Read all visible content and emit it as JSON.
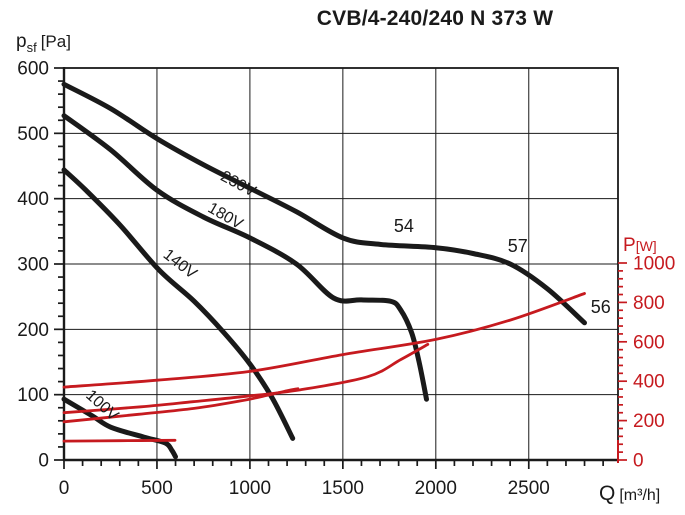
{
  "title": "CVB/4-240/240 N 373 W",
  "chart_data": {
    "type": "line",
    "title": "CVB/4-240/240 N 373 W",
    "grid": true,
    "legend": "none (curves labeled inline)",
    "x_axis": {
      "label_main": "Q",
      "label_unit": "[m³/h]",
      "min": 0,
      "max": 2980,
      "tick_labels": [
        0,
        500,
        1000,
        1500,
        2000,
        2500
      ],
      "major_step": 500,
      "minor_step": 100,
      "color": "#1a1a1a"
    },
    "y_left": {
      "label_main": "p",
      "label_sub": "sf",
      "label_unit": "[Pa]",
      "min": 0,
      "max": 600,
      "tick_labels": [
        600,
        500,
        400,
        300,
        200,
        100,
        0
      ],
      "major_step": 100,
      "minor_step": 20,
      "color": "#1a1a1a"
    },
    "y_right": {
      "label_main": "P",
      "label_unit": "[W]",
      "min": 0,
      "max": 1000,
      "tick_labels": [
        1000,
        800,
        600,
        400,
        200,
        0
      ],
      "major_step": 200,
      "minor_step": 40,
      "color": "#c61a1f"
    },
    "series": [
      {
        "name": "pressure-230V",
        "axis": "left",
        "color": "#1a1a1a",
        "width": 5,
        "points": [
          [
            0,
            575
          ],
          [
            250,
            538
          ],
          [
            500,
            492
          ],
          [
            750,
            452
          ],
          [
            1000,
            416
          ],
          [
            1250,
            380
          ],
          [
            1500,
            340
          ],
          [
            1700,
            330
          ],
          [
            2000,
            325
          ],
          [
            2200,
            316
          ],
          [
            2400,
            300
          ],
          [
            2600,
            262
          ],
          [
            2800,
            210
          ]
        ]
      },
      {
        "name": "pressure-180V",
        "axis": "left",
        "color": "#1a1a1a",
        "width": 5,
        "points": [
          [
            0,
            527
          ],
          [
            250,
            475
          ],
          [
            500,
            413
          ],
          [
            750,
            372
          ],
          [
            1000,
            340
          ],
          [
            1250,
            300
          ],
          [
            1450,
            248
          ],
          [
            1600,
            245
          ],
          [
            1755,
            243
          ],
          [
            1810,
            230
          ],
          [
            1870,
            195
          ],
          [
            1910,
            150
          ],
          [
            1950,
            93
          ]
        ]
      },
      {
        "name": "pressure-140V",
        "axis": "left",
        "color": "#1a1a1a",
        "width": 5,
        "points": [
          [
            0,
            444
          ],
          [
            118,
            413
          ],
          [
            300,
            360
          ],
          [
            511,
            291
          ],
          [
            700,
            243
          ],
          [
            860,
            195
          ],
          [
            1000,
            147
          ],
          [
            1120,
            95
          ],
          [
            1230,
            33
          ]
        ]
      },
      {
        "name": "pressure-100V",
        "axis": "left",
        "color": "#1a1a1a",
        "width": 5,
        "points": [
          [
            0,
            93
          ],
          [
            150,
            68
          ],
          [
            253,
            50
          ],
          [
            430,
            35
          ],
          [
            545,
            26
          ],
          [
            580,
            15
          ],
          [
            600,
            5
          ]
        ]
      },
      {
        "name": "power-230V",
        "axis": "right",
        "color": "#c61a1f",
        "width": 2.8,
        "points": [
          [
            0,
            370
          ],
          [
            500,
            405
          ],
          [
            1000,
            450
          ],
          [
            1500,
            535
          ],
          [
            2000,
            612
          ],
          [
            2400,
            710
          ],
          [
            2800,
            845
          ]
        ]
      },
      {
        "name": "power-180V",
        "axis": "right",
        "color": "#c61a1f",
        "width": 2.8,
        "points": [
          [
            0,
            240
          ],
          [
            414,
            270
          ],
          [
            694,
            296
          ],
          [
            952,
            321
          ],
          [
            1274,
            357
          ],
          [
            1634,
            423
          ],
          [
            1812,
            510
          ],
          [
            1957,
            587
          ]
        ]
      },
      {
        "name": "power-140V",
        "axis": "right",
        "color": "#c61a1f",
        "width": 2.8,
        "points": [
          [
            0,
            194
          ],
          [
            400,
            232
          ],
          [
            700,
            262
          ],
          [
            950,
            300
          ],
          [
            1100,
            330
          ],
          [
            1200,
            352
          ],
          [
            1258,
            362
          ]
        ]
      },
      {
        "name": "power-100V",
        "axis": "right",
        "color": "#c61a1f",
        "width": 2.8,
        "points": [
          [
            0,
            96
          ],
          [
            300,
            98
          ],
          [
            597,
            100
          ]
        ]
      }
    ],
    "annotations": [
      {
        "text": "230V",
        "q": 925,
        "p": 416,
        "rot": 28,
        "size": 16
      },
      {
        "text": "180V",
        "q": 855,
        "p": 367,
        "rot": 30,
        "size": 16
      },
      {
        "text": "140V",
        "q": 608,
        "p": 294,
        "rot": 38,
        "size": 16
      },
      {
        "text": "100V",
        "q": 188,
        "p": 78,
        "rot": 42,
        "size": 16
      },
      {
        "text": "54",
        "q": 1828,
        "p": 349,
        "rot": 0,
        "size": 18
      },
      {
        "text": "57",
        "q": 2441,
        "p": 318,
        "rot": 0,
        "size": 18
      },
      {
        "text": "56",
        "q": 2887,
        "p": 225,
        "rot": 0,
        "size": 18
      }
    ]
  }
}
